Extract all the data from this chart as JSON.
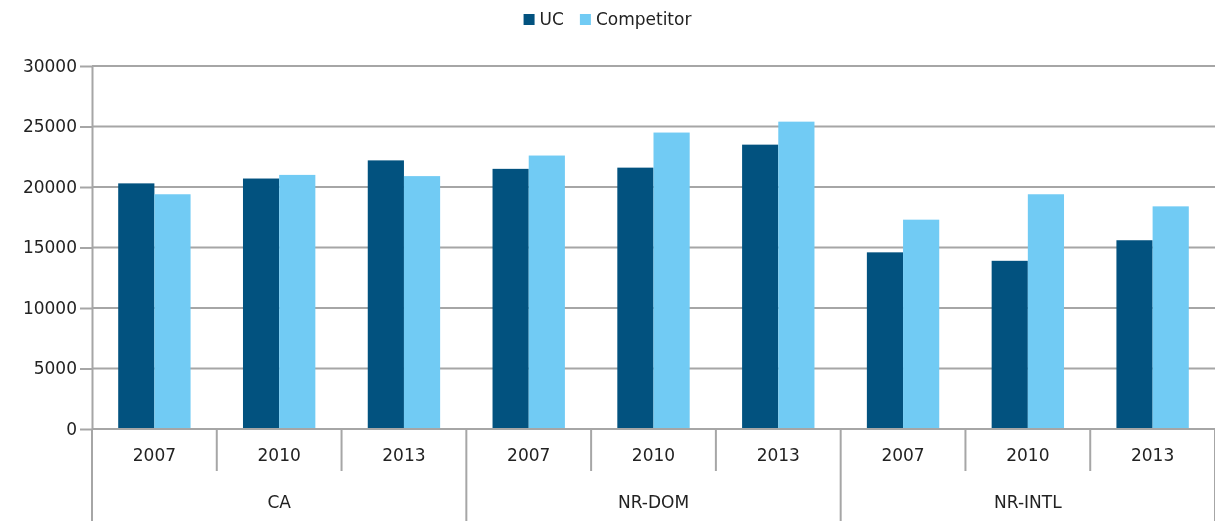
{
  "chart_data": {
    "type": "bar",
    "categories": [
      "2007",
      "2010",
      "2013",
      "2007",
      "2010",
      "2013",
      "2007",
      "2010",
      "2013"
    ],
    "series": [
      {
        "name": "UC",
        "color": "#02527f",
        "values": [
          20300,
          20700,
          22200,
          21500,
          21600,
          23500,
          14600,
          13900,
          15600
        ]
      },
      {
        "name": "Competitor",
        "color": "#71cbf4",
        "values": [
          19400,
          21000,
          20900,
          22600,
          24500,
          25400,
          17300,
          19400,
          18400
        ]
      }
    ],
    "annotations": [
      "CA",
      "NR-DOM",
      "NR-INTL"
    ],
    "ylim": [
      0,
      30000
    ],
    "yticks": [
      0,
      5000,
      10000,
      15000,
      20000,
      25000,
      30000
    ],
    "grid": "y",
    "legend": "top"
  }
}
